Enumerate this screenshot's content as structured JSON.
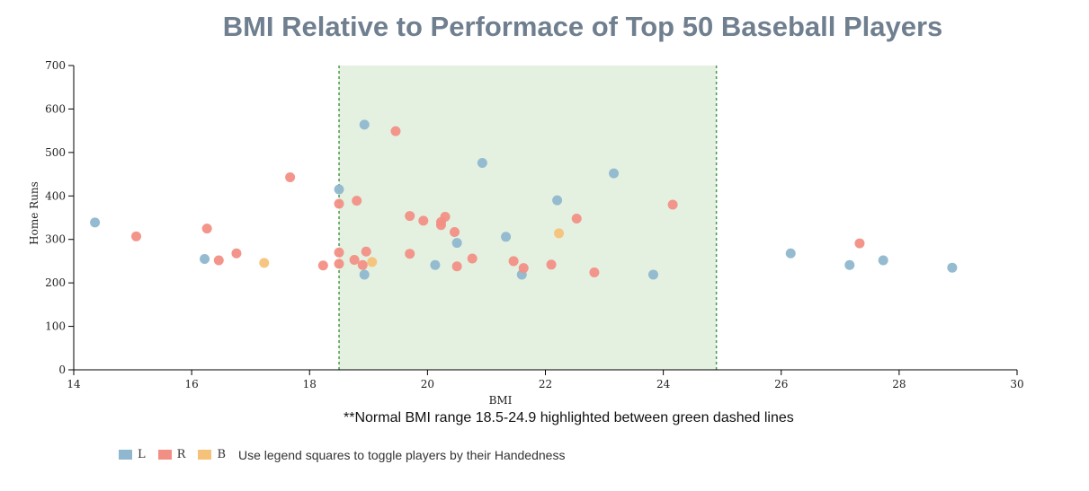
{
  "chart_data": {
    "type": "scatter",
    "title": "BMI Relative to Performace of Top 50 Baseball Players",
    "xlabel": "BMI",
    "ylabel": "Home Runs",
    "xlim": [
      14,
      30
    ],
    "ylim": [
      0,
      700
    ],
    "x_ticks": [
      14,
      16,
      18,
      20,
      22,
      24,
      26,
      28,
      30
    ],
    "y_ticks": [
      0,
      100,
      200,
      300,
      400,
      500,
      600,
      700
    ],
    "highlight_range": [
      18.5,
      24.9
    ],
    "highlight_color": "#e4f1e1",
    "highlight_line_color": "#4a9a4a",
    "grid": false,
    "legend_position": "bottom-left",
    "series": [
      {
        "name": "L",
        "color": "#8fb7cf",
        "points": [
          [
            14.36,
            339
          ],
          [
            16.22,
            255
          ],
          [
            18.5,
            415
          ],
          [
            18.93,
            564
          ],
          [
            18.93,
            219
          ],
          [
            20.13,
            241
          ],
          [
            20.5,
            292
          ],
          [
            20.93,
            476
          ],
          [
            21.33,
            306
          ],
          [
            21.6,
            219
          ],
          [
            22.2,
            390
          ],
          [
            23.16,
            452
          ],
          [
            23.83,
            219
          ],
          [
            26.16,
            268
          ],
          [
            27.16,
            241
          ],
          [
            27.73,
            252
          ],
          [
            28.9,
            235
          ]
        ]
      },
      {
        "name": "R",
        "color": "#f28f85",
        "points": [
          [
            15.06,
            307
          ],
          [
            16.26,
            325
          ],
          [
            16.46,
            252
          ],
          [
            16.76,
            268
          ],
          [
            17.67,
            443
          ],
          [
            18.23,
            240
          ],
          [
            18.5,
            382
          ],
          [
            18.5,
            244
          ],
          [
            18.5,
            270
          ],
          [
            18.76,
            253
          ],
          [
            18.8,
            389
          ],
          [
            18.9,
            241
          ],
          [
            18.96,
            272
          ],
          [
            19.46,
            549
          ],
          [
            19.7,
            354
          ],
          [
            19.7,
            267
          ],
          [
            19.93,
            343
          ],
          [
            20.23,
            333
          ],
          [
            20.23,
            340
          ],
          [
            20.3,
            352
          ],
          [
            20.46,
            317
          ],
          [
            20.5,
            238
          ],
          [
            20.76,
            256
          ],
          [
            21.46,
            250
          ],
          [
            21.63,
            234
          ],
          [
            22.1,
            242
          ],
          [
            22.53,
            348
          ],
          [
            22.83,
            224
          ],
          [
            24.16,
            380
          ],
          [
            27.33,
            291
          ]
        ]
      },
      {
        "name": "B",
        "color": "#f6c27a",
        "points": [
          [
            17.23,
            246
          ],
          [
            19.06,
            248
          ],
          [
            22.23,
            314
          ]
        ]
      }
    ]
  },
  "note": "**Normal BMI range 18.5-24.9 highlighted between green dashed lines",
  "legend": {
    "items": [
      {
        "label": "L",
        "color": "#8fb7cf"
      },
      {
        "label": "R",
        "color": "#f28f85"
      },
      {
        "label": "B",
        "color": "#f6c27a"
      }
    ],
    "hint": "Use legend squares to toggle players by their Handedness"
  }
}
